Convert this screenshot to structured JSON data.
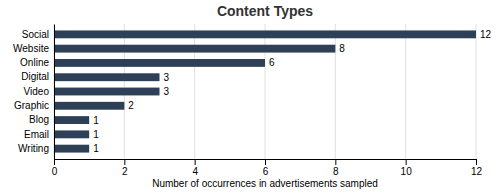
{
  "chart_data": {
    "type": "bar",
    "orientation": "horizontal",
    "title": "Content Types",
    "xlabel": "Number of occurrences in advertisements sampled",
    "categories": [
      "Social",
      "Website",
      "Online",
      "Digital",
      "Video",
      "Graphic",
      "Blog",
      "Email",
      "Writing"
    ],
    "values": [
      12,
      8,
      6,
      3,
      3,
      2,
      1,
      1,
      1
    ],
    "color": "#2e4057",
    "xlim": [
      0,
      12
    ],
    "xticks": [
      0,
      2,
      4,
      6,
      8,
      10,
      12
    ],
    "grid": true,
    "data_labels": true
  }
}
